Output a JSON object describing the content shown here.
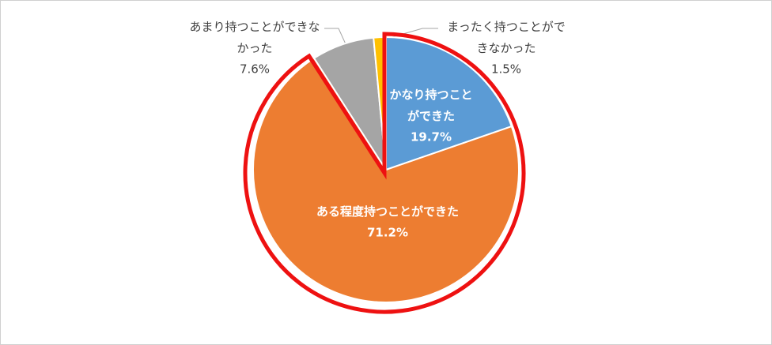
{
  "chart_data": {
    "type": "pie",
    "categories": [
      "かなり持つことができた",
      "ある程度持つことができた",
      "あまり持つことができなかった",
      "まったく持つことができなかった"
    ],
    "values": [
      19.7,
      71.2,
      7.6,
      1.5
    ],
    "value_labels": [
      "19.7%",
      "71.2%",
      "7.6%",
      "1.5%"
    ],
    "colors": [
      "#5b9bd5",
      "#ed7d31",
      "#a5a5a5",
      "#ffc000"
    ]
  }
}
